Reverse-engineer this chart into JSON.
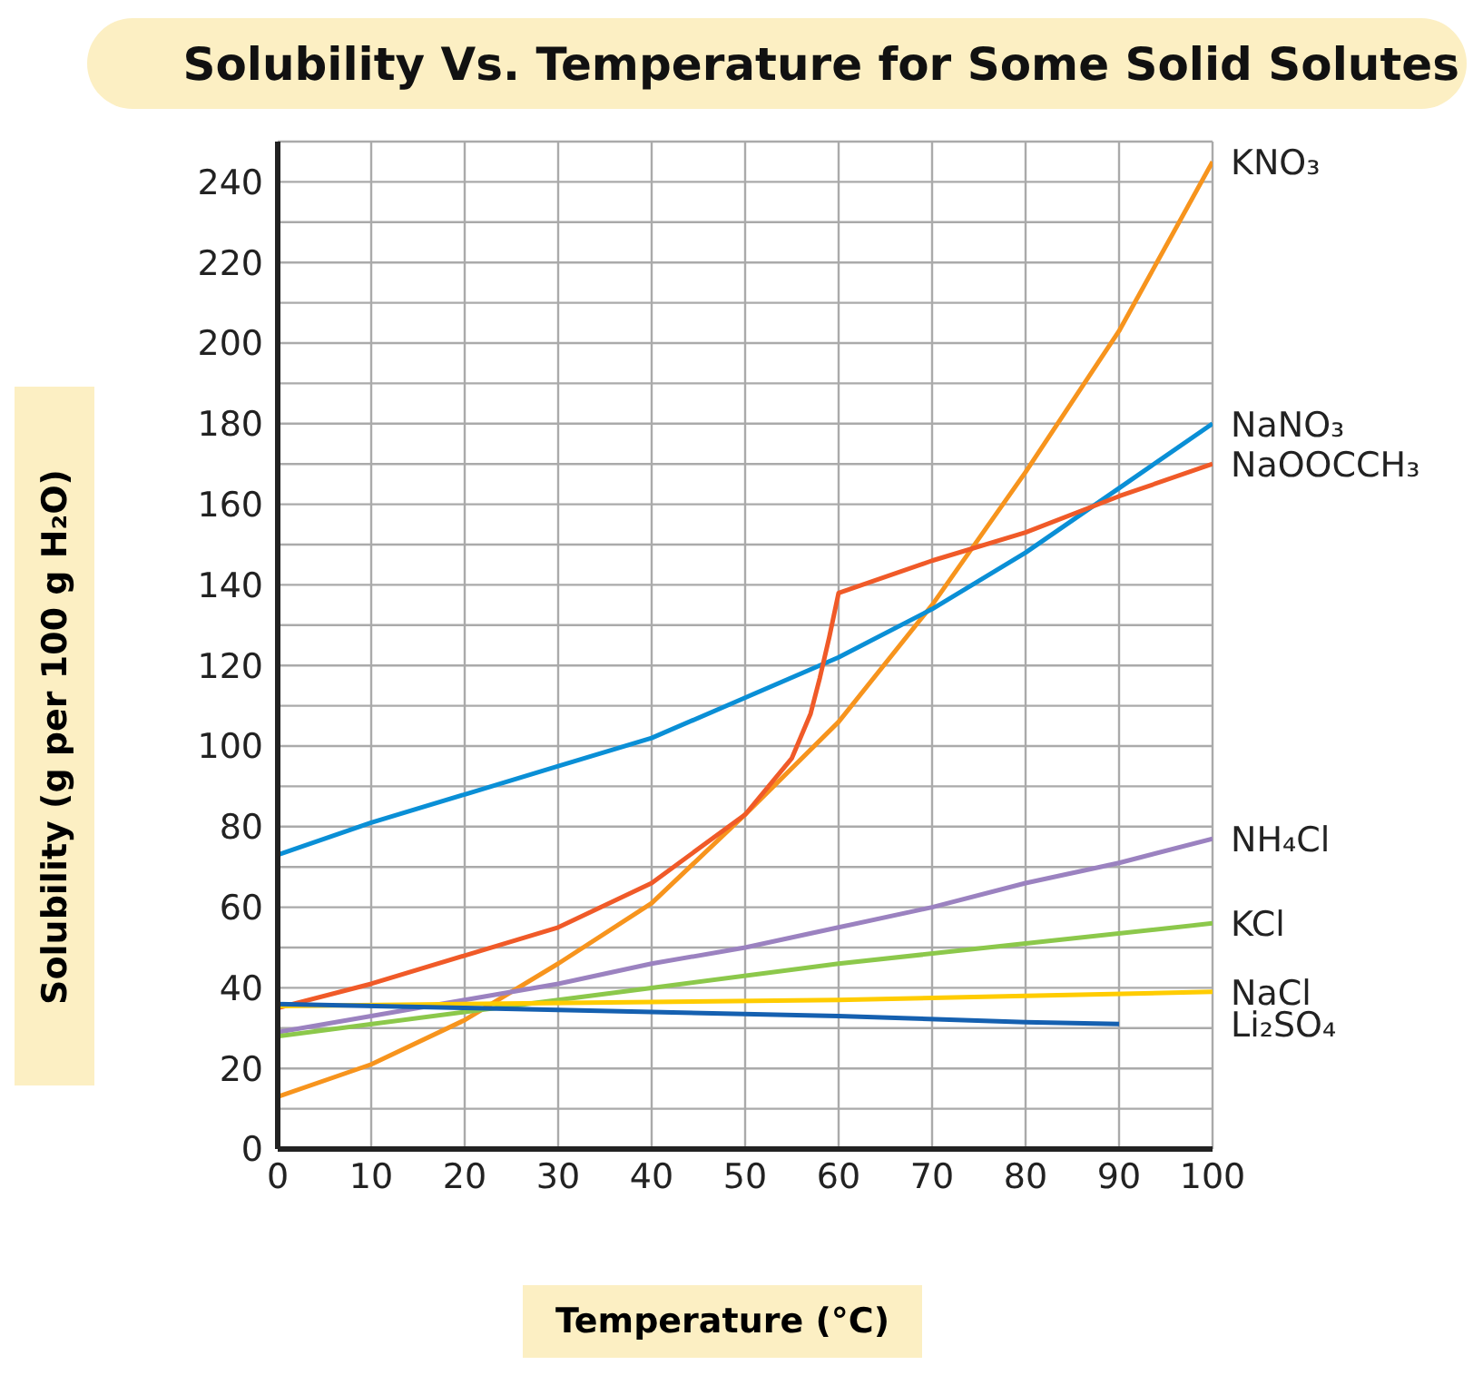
{
  "chart_data": {
    "type": "line",
    "title": "Solubility Vs. Temperature for Some Solid Solutes",
    "xlabel": "Temperature (°C)",
    "ylabel": "Solubility (g per 100 g H₂O)",
    "xlim": [
      0,
      100
    ],
    "xticks": [
      0,
      10,
      20,
      30,
      40,
      50,
      60,
      70,
      80,
      90,
      100
    ],
    "ylim": [
      0,
      250
    ],
    "yticks": [
      0,
      {
        "value": 10,
        "label": null
      },
      20,
      {
        "value": 30,
        "label": null
      },
      40,
      {
        "value": 50,
        "label": null
      },
      60,
      {
        "value": 70,
        "label": null
      },
      80,
      {
        "value": 90,
        "label": null
      },
      100,
      {
        "value": 110,
        "label": null
      },
      120,
      {
        "value": 130,
        "label": null
      },
      140,
      {
        "value": 150,
        "label": null
      },
      160,
      {
        "value": 170,
        "label": null
      },
      180,
      {
        "value": 190,
        "label": null
      },
      200,
      {
        "value": 210,
        "label": null
      },
      220,
      {
        "value": 230,
        "label": null
      },
      240,
      {
        "value": 250,
        "label": null
      }
    ],
    "grid": true,
    "series": [
      {
        "name": "KNO₃",
        "color": "#f7941d",
        "x": [
          0,
          10,
          20,
          30,
          40,
          50,
          60,
          70,
          80,
          90,
          100
        ],
        "values": [
          13,
          21,
          32,
          46,
          61,
          83,
          106,
          135,
          168,
          203,
          245
        ]
      },
      {
        "name": "NaNO₃",
        "color": "#0a8fd6",
        "x": [
          0,
          10,
          20,
          30,
          40,
          50,
          60,
          70,
          80,
          90,
          100
        ],
        "values": [
          73,
          81,
          88,
          95,
          102,
          112,
          122,
          134,
          148,
          164,
          180
        ]
      },
      {
        "name": "NaOOCCH₃",
        "color": "#f05a28",
        "x": [
          0,
          10,
          20,
          30,
          40,
          50,
          55,
          57,
          58,
          59,
          60,
          70,
          80,
          90,
          100
        ],
        "values": [
          35,
          41,
          48,
          55,
          66,
          83,
          97,
          108,
          117,
          127,
          138,
          146,
          153,
          162,
          170
        ]
      },
      {
        "name": "NH₄Cl",
        "color": "#9b82c0",
        "x": [
          0,
          10,
          20,
          30,
          40,
          50,
          60,
          70,
          80,
          90,
          100
        ],
        "values": [
          29,
          33,
          37,
          41,
          46,
          50,
          55,
          60,
          66,
          71,
          77
        ]
      },
      {
        "name": "KCl",
        "color": "#8cc84b",
        "x": [
          0,
          20,
          40,
          60,
          80,
          100
        ],
        "values": [
          28,
          34,
          40,
          46,
          51,
          56
        ]
      },
      {
        "name": "NaCl",
        "color": "#ffcc00",
        "x": [
          0,
          40,
          60,
          80,
          100
        ],
        "values": [
          35.5,
          36.5,
          37,
          38,
          39
        ]
      },
      {
        "name": "Li₂SO₄",
        "color": "#1560b0",
        "x": [
          0,
          20,
          40,
          60,
          80,
          90
        ],
        "values": [
          36,
          35,
          34,
          33,
          31.5,
          31
        ]
      }
    ]
  }
}
